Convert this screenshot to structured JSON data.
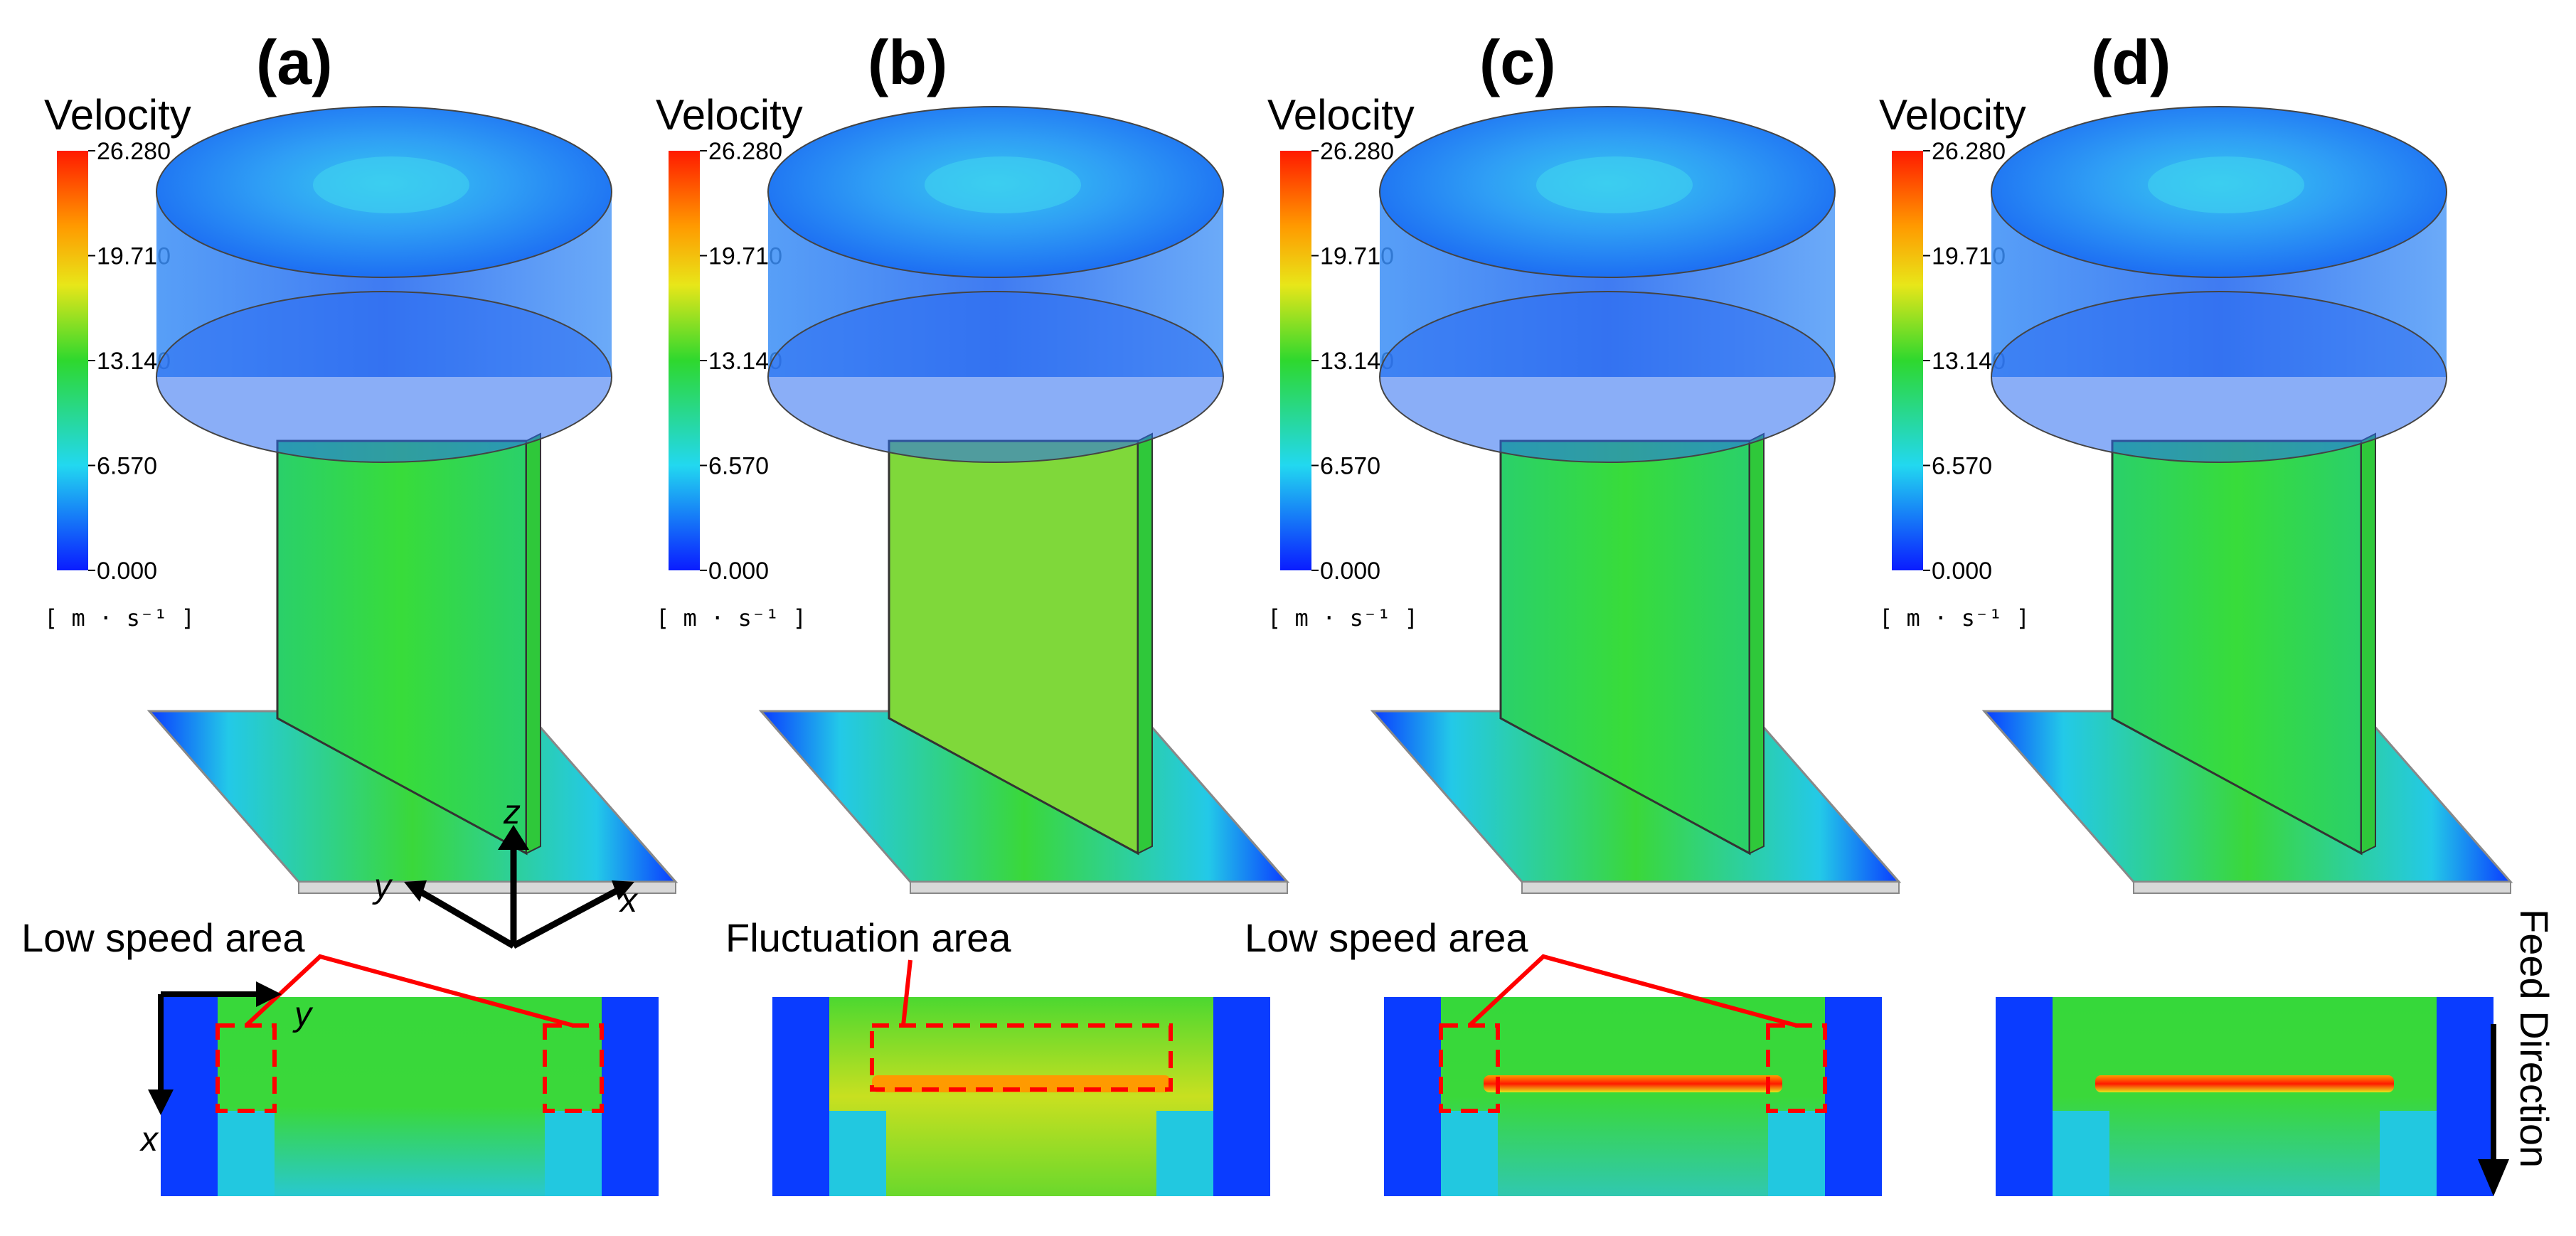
{
  "panels": [
    {
      "label": "(a)",
      "annotation": "Low speed area"
    },
    {
      "label": "(b)",
      "annotation": "Fluctuation area"
    },
    {
      "label": "(c)",
      "annotation": "Low speed area"
    },
    {
      "label": "(d)",
      "annotation": ""
    }
  ],
  "legend": {
    "title": "Velocity",
    "ticks": [
      "26.280",
      "19.710",
      "13.140",
      "6.570",
      "0.000"
    ],
    "unit": "[ m · s⁻¹ ]",
    "min": 0.0,
    "max": 26.28
  },
  "axes": {
    "x": "x",
    "y": "y",
    "z": "z"
  },
  "feed_direction": "Feed Direction",
  "colors": {
    "blue": "#0a3cff",
    "cyan": "#22d8f0",
    "green": "#2ed82e",
    "yellow": "#e8e619",
    "orange": "#ff9a00",
    "red": "#ff1a00",
    "annotation": "#ff0000"
  }
}
